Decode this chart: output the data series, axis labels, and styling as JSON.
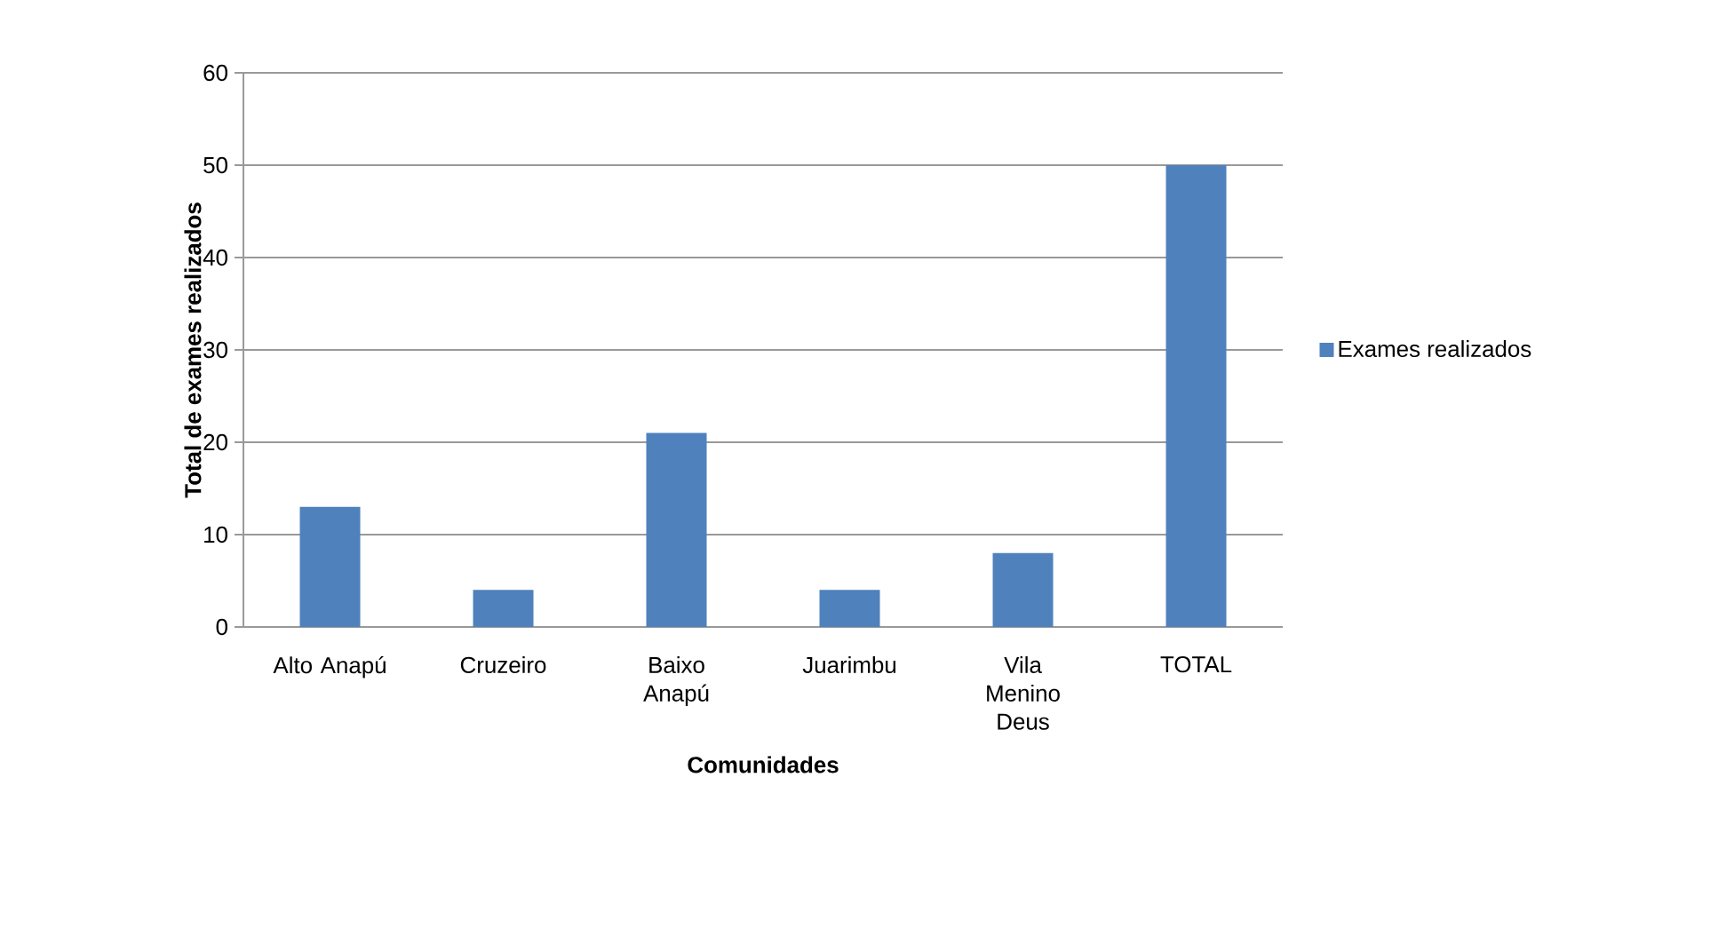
{
  "chart_data": {
    "type": "bar",
    "xlabel": "Comunidades",
    "ylabel": "Total de exames realizados",
    "categories": [
      "Alto Anapú",
      "Cruzeiro",
      "Baixo Anapú",
      "Juarimbu",
      "Vila Menino Deus",
      "TOTAL"
    ],
    "series": [
      {
        "name": "Exames realizados",
        "color": "#4f81bd",
        "values": [
          13,
          4,
          21,
          4,
          8,
          50
        ]
      }
    ],
    "ylim": [
      0,
      60
    ],
    "yticks": [
      0,
      10,
      20,
      30,
      40,
      50,
      60
    ],
    "grid": "y",
    "legend": "right"
  }
}
